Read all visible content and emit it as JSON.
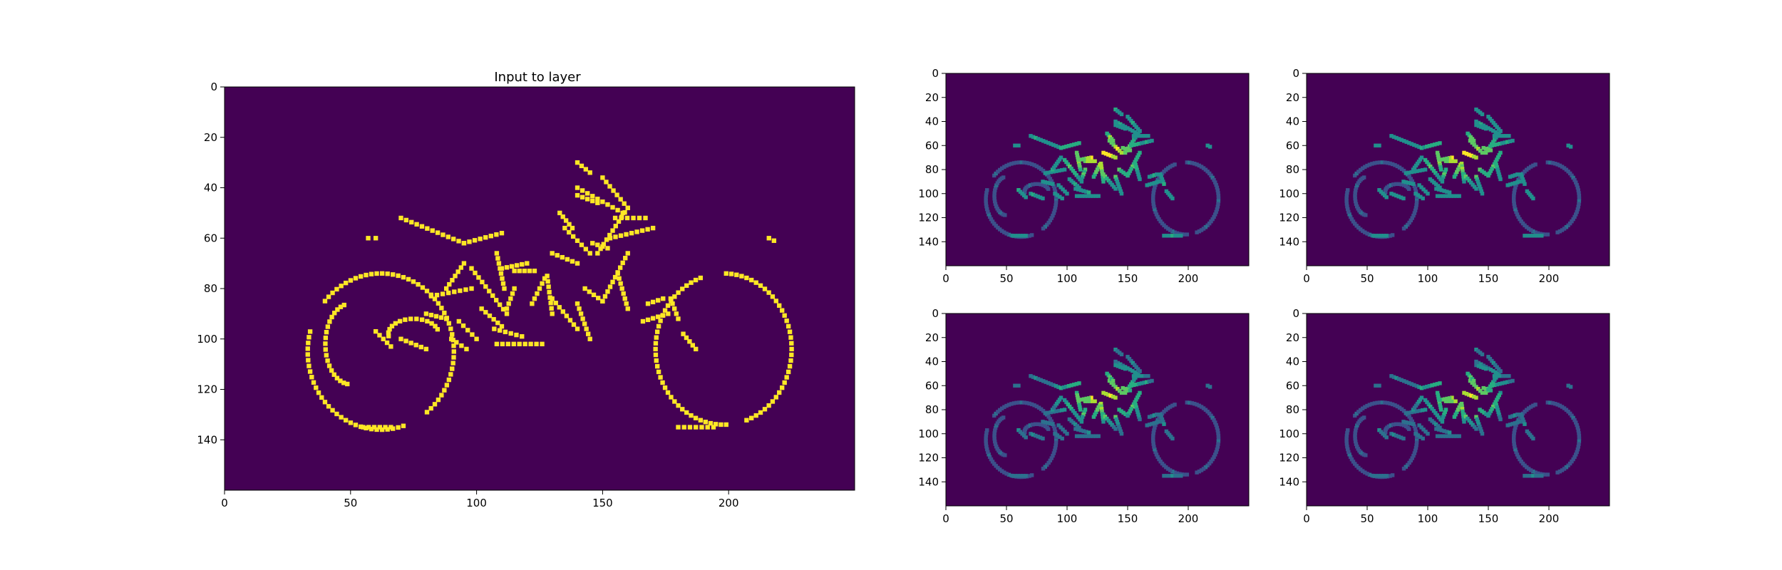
{
  "figure_background": "#ffffff",
  "colormap": {
    "name": "viridis",
    "low": "#440154",
    "high": "#fde725"
  },
  "chart_data": [
    {
      "type": "heatmap",
      "panel": "main",
      "title": "Input to layer",
      "xlabel": "",
      "ylabel": "",
      "xlim": [
        0,
        250
      ],
      "ylim": [
        160,
        0
      ],
      "xticks": [
        0,
        50,
        100,
        150,
        200
      ],
      "yticks": [
        0,
        20,
        40,
        60,
        80,
        100,
        120,
        140
      ],
      "values": "binary edge map of a motorcycle (0 background, 1 edge)"
    },
    {
      "type": "heatmap",
      "panel": "feature-map-1",
      "title": "",
      "xlim": [
        0,
        250
      ],
      "ylim": [
        160,
        0
      ],
      "xticks": [
        0,
        50,
        100,
        150,
        200
      ],
      "yticks": [
        0,
        20,
        40,
        60,
        80,
        100,
        120,
        140
      ],
      "values": "smoothed layer activation of the motorcycle edge map"
    },
    {
      "type": "heatmap",
      "panel": "feature-map-2",
      "title": "",
      "xlim": [
        0,
        250
      ],
      "ylim": [
        160,
        0
      ],
      "xticks": [
        0,
        50,
        100,
        150,
        200
      ],
      "yticks": [
        0,
        20,
        40,
        60,
        80,
        100,
        120,
        140
      ],
      "values": "smoothed layer activation of the motorcycle edge map"
    },
    {
      "type": "heatmap",
      "panel": "feature-map-3",
      "title": "",
      "xlim": [
        0,
        250
      ],
      "ylim": [
        160,
        0
      ],
      "xticks": [
        0,
        50,
        100,
        150,
        200
      ],
      "yticks": [
        0,
        20,
        40,
        60,
        80,
        100,
        120,
        140
      ],
      "values": "smoothed layer activation of the motorcycle edge map"
    },
    {
      "type": "heatmap",
      "panel": "feature-map-4",
      "title": "",
      "xlim": [
        0,
        250
      ],
      "ylim": [
        160,
        0
      ],
      "xticks": [
        0,
        50,
        100,
        150,
        200
      ],
      "yticks": [
        0,
        20,
        40,
        60,
        80,
        100,
        120,
        140
      ],
      "values": "smoothed layer activation of the motorcycle edge map"
    }
  ]
}
